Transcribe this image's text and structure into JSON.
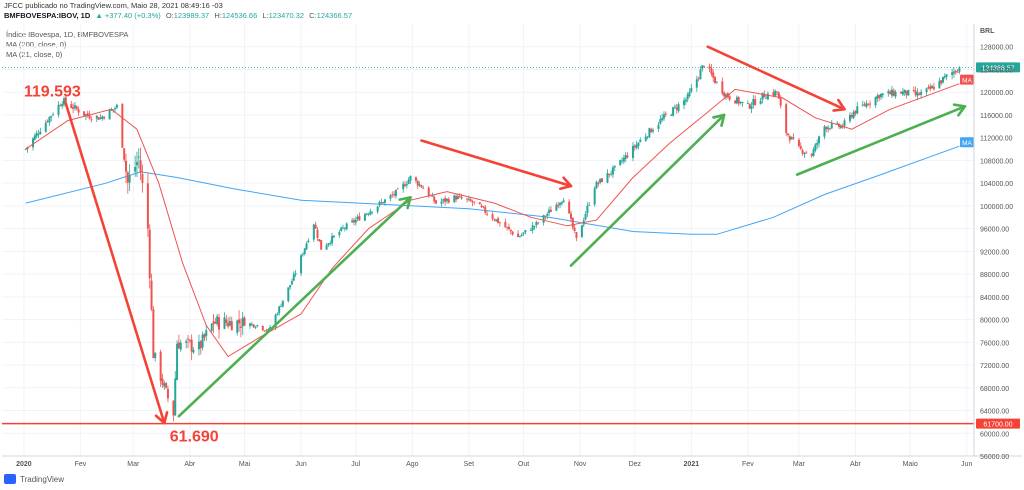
{
  "header": {
    "publish_line": "JFCC publicado no TradingView.com, Maio 28, 2021 08:49:16 -03",
    "symbol": "BMFBOVESPA:IBOV, 1D",
    "change": "▲ +377.40 (+0.3%)",
    "o_label": "O:",
    "o_value": "123989.37",
    "h_label": "H:",
    "h_value": "124536.66",
    "l_label": "L:",
    "l_value": "123470.32",
    "c_label": "C:",
    "c_value": "124366.57"
  },
  "legend": {
    "name": "Índice IBovespa, 1D, BMFBOVESPA",
    "ma1": "MA (200, close, 0)",
    "ma2": "MA (21, close, 0)"
  },
  "footer": {
    "brand": "TradingView"
  },
  "colors": {
    "up": "#26a69a",
    "down": "#ef5350",
    "ma21": "#ef5350",
    "ma200": "#42a5f5",
    "annot_red": "#f44336",
    "annot_green": "#4caf50",
    "hline": "#f44336",
    "grid": "#f0f3fa"
  },
  "chart_data": {
    "type": "candlestick",
    "currency": "BRL",
    "ylim": [
      56000,
      132000
    ],
    "y_ticks": [
      56000,
      60000,
      64000,
      68000,
      72000,
      76000,
      80000,
      84000,
      88000,
      92000,
      96000,
      100000,
      104000,
      108000,
      112000,
      116000,
      120000,
      124000,
      128000
    ],
    "x_labels": [
      "2020",
      "Fev",
      "Mar",
      "Abr",
      "Mai",
      "Jun",
      "Jul",
      "Ago",
      "Set",
      "Out",
      "Nov",
      "Dez",
      "2021",
      "Fev",
      "Mar",
      "Abr",
      "Maio",
      "Jun"
    ],
    "last_price": "124366.57",
    "ma_tag": "MA",
    "hline_value": 61700,
    "hline_label": "61700.00",
    "annotations": [
      {
        "text": "119.593",
        "value": 119593
      },
      {
        "text": "61.690",
        "value": 61690
      }
    ],
    "price_path": [
      [
        "2020-01-02",
        110000
      ],
      [
        "2020-01-10",
        113500
      ],
      [
        "2020-01-22",
        118500
      ],
      [
        "2020-02-04",
        116000
      ],
      [
        "2020-02-12",
        115500
      ],
      [
        "2020-02-21",
        117500
      ],
      [
        "2020-02-27",
        104000
      ],
      [
        "2020-03-04",
        108500
      ],
      [
        "2020-03-09",
        96000
      ],
      [
        "2020-03-12",
        74000
      ],
      [
        "2020-03-18",
        68000
      ],
      [
        "2020-03-23",
        63500
      ],
      [
        "2020-03-25",
        76000
      ],
      [
        "2020-04-06",
        75000
      ],
      [
        "2020-04-14",
        79500
      ],
      [
        "2020-04-28",
        79500
      ],
      [
        "2020-05-08",
        79000
      ],
      [
        "2020-05-14",
        78000
      ],
      [
        "2020-05-28",
        87500
      ],
      [
        "2020-06-08",
        97000
      ],
      [
        "2020-06-12",
        92500
      ],
      [
        "2020-06-24",
        96000
      ],
      [
        "2020-07-08",
        99000
      ],
      [
        "2020-07-24",
        102500
      ],
      [
        "2020-07-31",
        105000
      ],
      [
        "2020-08-06",
        103500
      ],
      [
        "2020-08-14",
        100500
      ],
      [
        "2020-08-25",
        101500
      ],
      [
        "2020-09-04",
        100500
      ],
      [
        "2020-09-14",
        98000
      ],
      [
        "2020-09-28",
        94500
      ],
      [
        "2020-10-09",
        97000
      ],
      [
        "2020-10-23",
        101500
      ],
      [
        "2020-10-30",
        94000
      ],
      [
        "2020-11-09",
        103500
      ],
      [
        "2020-11-20",
        106500
      ],
      [
        "2020-12-04",
        111500
      ],
      [
        "2020-12-15",
        115000
      ],
      [
        "2020-12-30",
        119000
      ],
      [
        "2021-01-08",
        125000
      ],
      [
        "2021-01-14",
        122000
      ],
      [
        "2021-01-20",
        119500
      ],
      [
        "2021-02-01",
        117500
      ],
      [
        "2021-02-10",
        119500
      ],
      [
        "2021-02-17",
        120000
      ],
      [
        "2021-02-22",
        113000
      ],
      [
        "2021-03-01",
        110000
      ],
      [
        "2021-03-08",
        109000
      ],
      [
        "2021-03-15",
        114000
      ],
      [
        "2021-03-25",
        114000
      ],
      [
        "2021-03-31",
        116500
      ],
      [
        "2021-04-14",
        119500
      ],
      [
        "2021-04-26",
        120000
      ],
      [
        "2021-05-05",
        119500
      ],
      [
        "2021-05-12",
        120500
      ],
      [
        "2021-05-20",
        122500
      ],
      [
        "2021-05-28",
        124366
      ]
    ],
    "ma200_path": [
      [
        "2020-01-02",
        100500
      ],
      [
        "2020-02-15",
        104000
      ],
      [
        "2020-03-05",
        106000
      ],
      [
        "2020-03-25",
        105000
      ],
      [
        "2020-04-25",
        103000
      ],
      [
        "2020-06-01",
        101000
      ],
      [
        "2020-07-15",
        100300
      ],
      [
        "2020-09-01",
        99500
      ],
      [
        "2020-10-15",
        98000
      ],
      [
        "2020-11-30",
        95500
      ],
      [
        "2021-01-01",
        95000
      ],
      [
        "2021-01-15",
        95000
      ],
      [
        "2021-02-15",
        98000
      ],
      [
        "2021-03-15",
        102000
      ],
      [
        "2021-04-15",
        105500
      ],
      [
        "2021-05-28",
        110500
      ]
    ],
    "ma21_path": [
      [
        "2020-01-02",
        110000
      ],
      [
        "2020-01-25",
        115000
      ],
      [
        "2020-02-18",
        117000
      ],
      [
        "2020-03-03",
        113500
      ],
      [
        "2020-03-15",
        104000
      ],
      [
        "2020-03-28",
        90000
      ],
      [
        "2020-04-10",
        79000
      ],
      [
        "2020-04-22",
        73500
      ],
      [
        "2020-05-10",
        77000
      ],
      [
        "2020-06-01",
        81000
      ],
      [
        "2020-06-18",
        89000
      ],
      [
        "2020-07-08",
        96000
      ],
      [
        "2020-07-31",
        101000
      ],
      [
        "2020-08-20",
        102500
      ],
      [
        "2020-09-15",
        100500
      ],
      [
        "2020-10-05",
        98000
      ],
      [
        "2020-10-25",
        96500
      ],
      [
        "2020-11-10",
        97500
      ],
      [
        "2020-11-30",
        105000
      ],
      [
        "2020-12-20",
        111000
      ],
      [
        "2021-01-10",
        116500
      ],
      [
        "2021-01-25",
        120500
      ],
      [
        "2021-02-20",
        119000
      ],
      [
        "2021-03-10",
        115500
      ],
      [
        "2021-03-30",
        113500
      ],
      [
        "2021-04-20",
        117000
      ],
      [
        "2021-05-28",
        121500
      ]
    ]
  }
}
